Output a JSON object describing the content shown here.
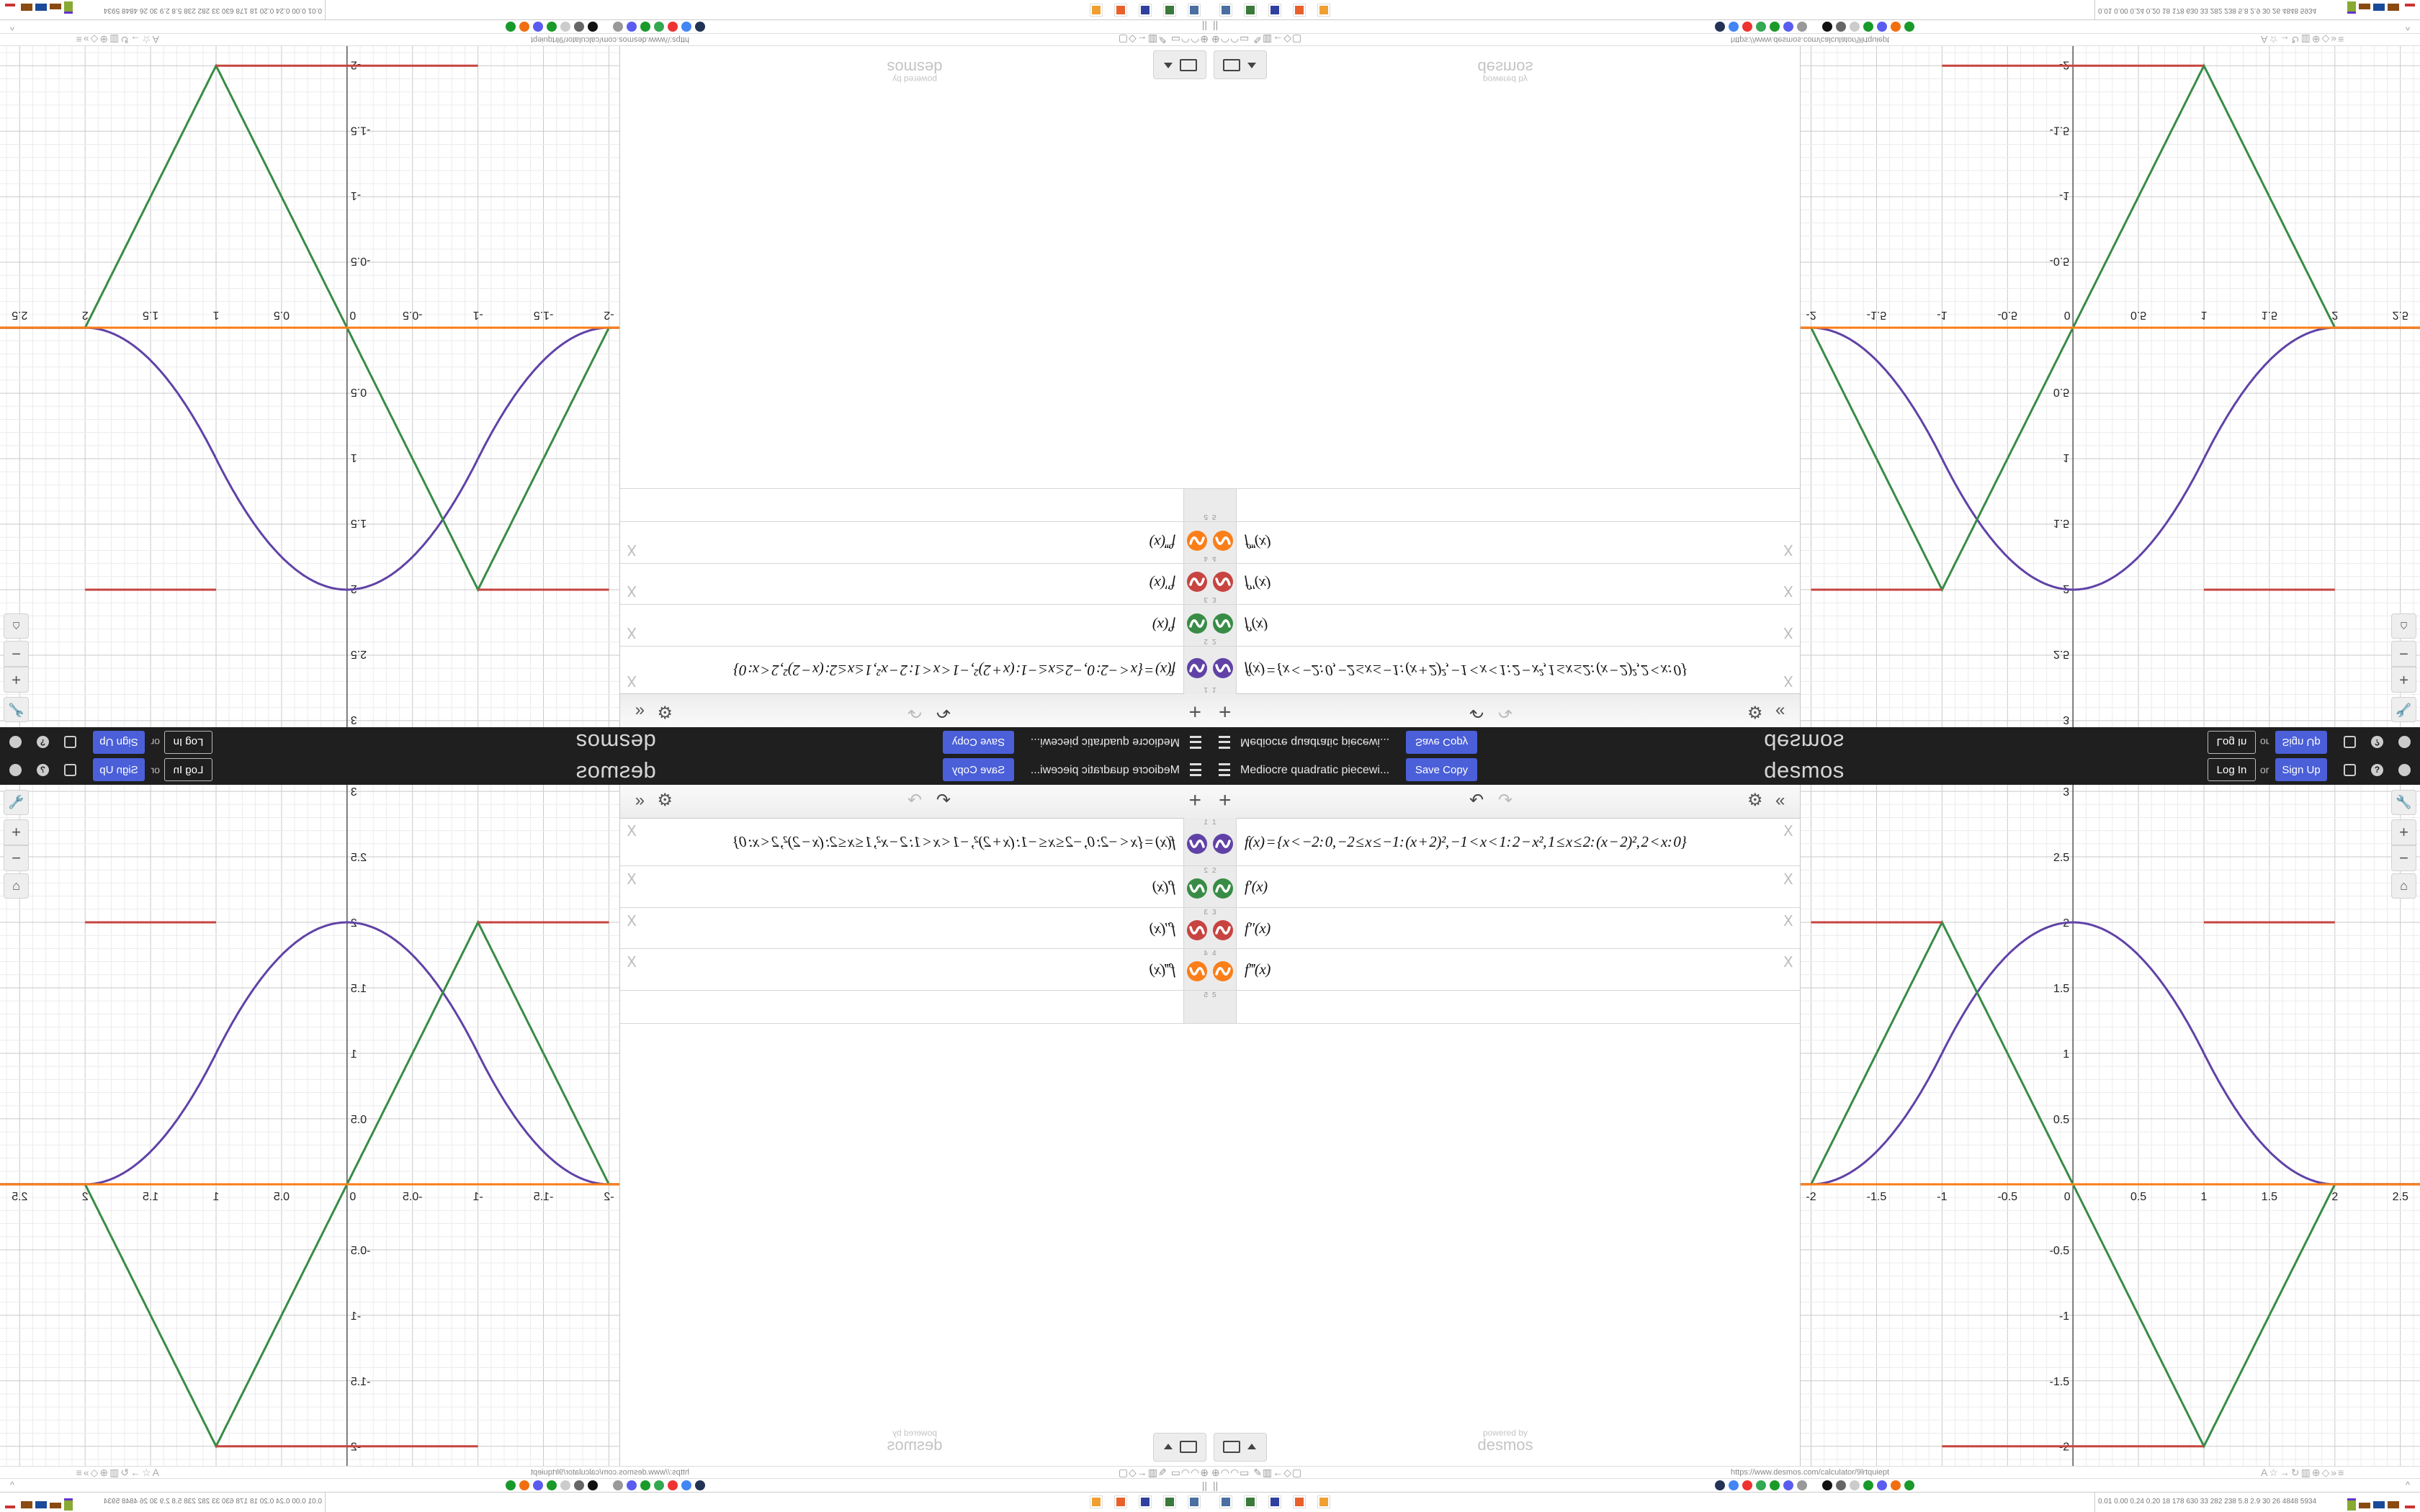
{
  "header": {
    "title": "Mediocre quadratic piecewi...",
    "save_copy": "Save Copy",
    "logo": "desmos",
    "log_in": "Log In",
    "or": "or",
    "sign_up": "Sign Up",
    "icons": [
      "hamburger-icon",
      "share-icon",
      "help-icon",
      "globe-icon"
    ]
  },
  "toolbar": {
    "add": "+",
    "undo": "↶",
    "redo": "↷",
    "settings": "⚙",
    "collapse": "«"
  },
  "expressions": [
    {
      "index": "1",
      "text": "f(x) = {x < −2: 0, −2 ≤ x ≤ −1: (x + 2)², −1 < x < 1: 2 − x², 1 ≤ x ≤ 2: (x − 2)², 2 < x: 0}",
      "color": "#6042a6"
    },
    {
      "index": "2",
      "text": "f′(x)",
      "color": "#388c46"
    },
    {
      "index": "3",
      "text": "f″(x)",
      "color": "#c74440"
    },
    {
      "index": "4",
      "text": "f‴(x)",
      "color": "#fa7e19"
    },
    {
      "index": "5",
      "text": "",
      "color": ""
    }
  ],
  "delete_label": "X",
  "footer": {
    "powered_by": "powered by",
    "powered_logo": "desmos"
  },
  "graph": {
    "xlim": [
      -2.08,
      2.65
    ],
    "ylim": [
      -2.15,
      3.05
    ],
    "grid": true,
    "major_step": 0.5,
    "minor_step": 0.1,
    "x_tick_labels": [
      "-2",
      "-1.5",
      "-1",
      "-0.5",
      "0",
      "0.5",
      "1",
      "1.5",
      "2",
      "2.5"
    ],
    "y_tick_labels": [
      "3",
      "2.5",
      "2",
      "1.5",
      "1",
      "0.5",
      "-0.5",
      "-1",
      "-1.5",
      "-2"
    ],
    "buttons": {
      "settings": "wrench-icon",
      "zoom_in": "+",
      "zoom_out": "−",
      "home": "home-icon"
    }
  },
  "browser": {
    "url": "https://www.desmos.com/calculator/9lrtquiept",
    "status_numbers": "0.01 0.00 0.24 0.20 18 178 630 33 282 238 5.8 2.9 30 26 4848 5934",
    "bookmark_colors": [
      "#223355",
      "#4285f4",
      "#e33",
      "#34a853",
      "#1a9a2a",
      "#5a5cf0",
      "#999",
      "#111",
      "#666",
      "#ccc",
      "#1a9a2a",
      "#5a5cf0",
      "#f07010",
      "#1a9a2a"
    ],
    "taskbar_colors": [
      "#4a6fa0",
      "#3a7a3a",
      "#3040a0",
      "#e8602a",
      "#f0a030"
    ]
  },
  "colors": {
    "accent": "#4a5fd8",
    "header_bg": "#1f1f1f"
  }
}
